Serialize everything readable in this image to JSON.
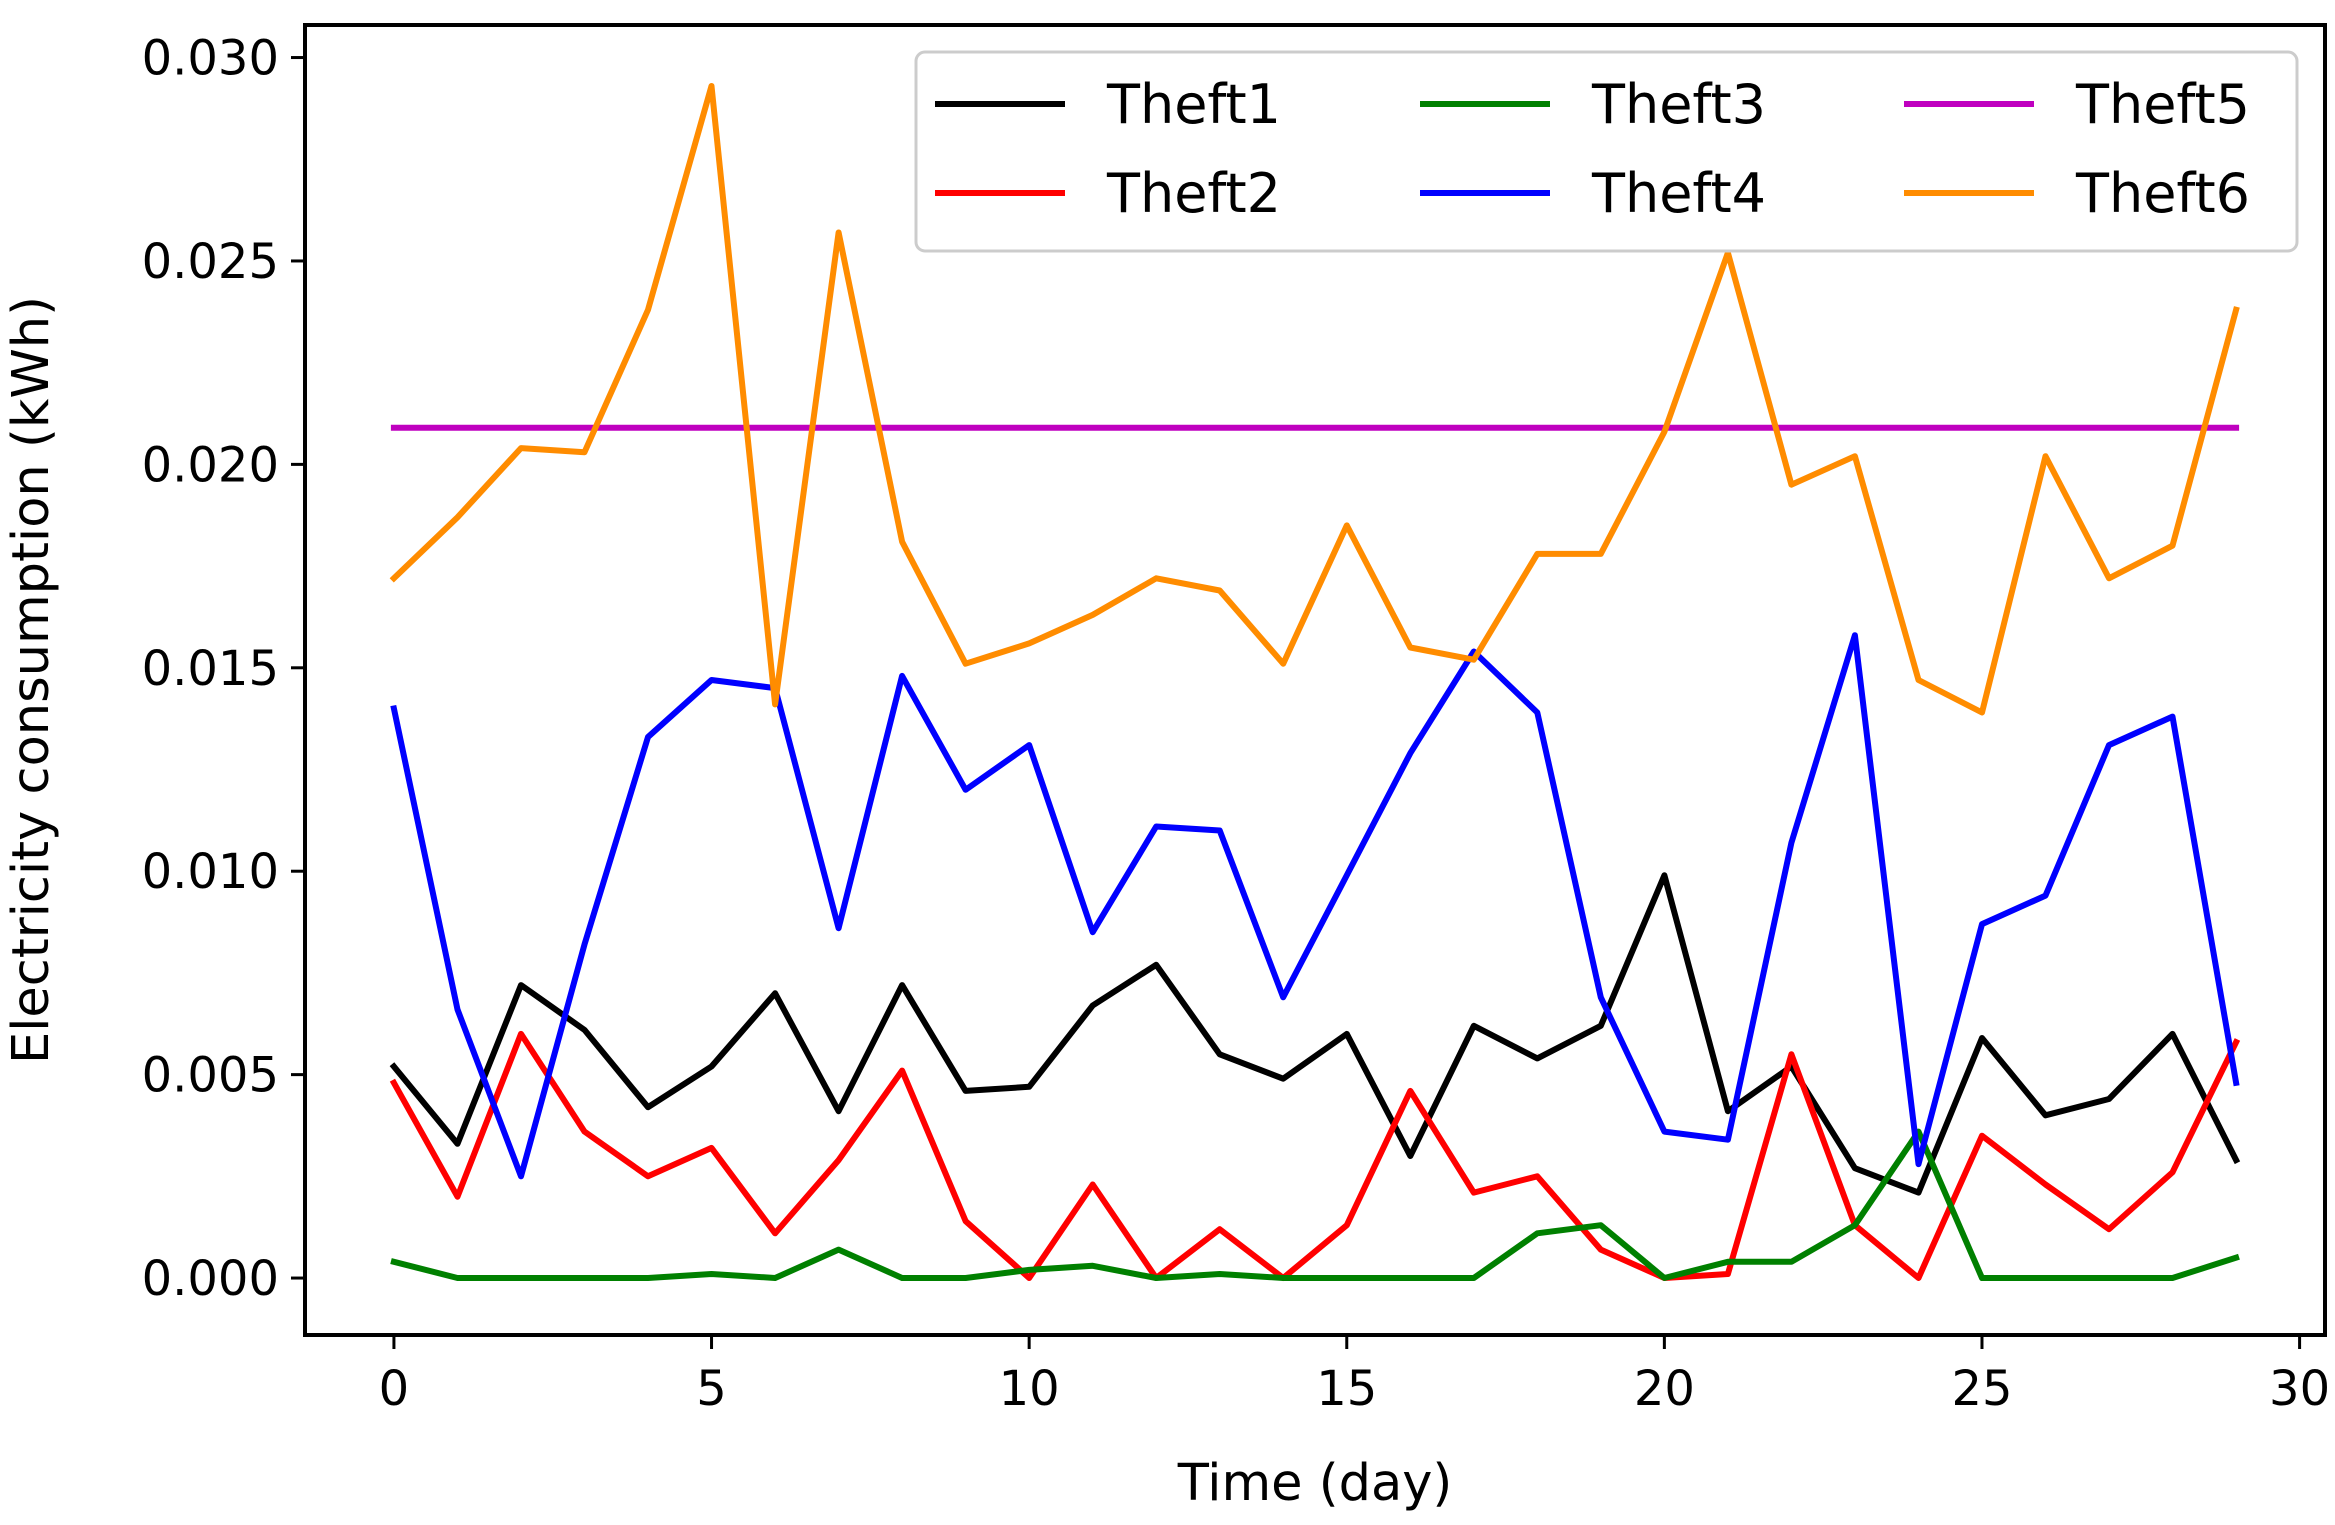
{
  "chart_data": {
    "type": "line",
    "title": "",
    "xlabel": "Time (day)",
    "ylabel": "Electricity consumption (kWh)",
    "xlim": [
      -1.4,
      30.4
    ],
    "ylim": [
      -0.0014,
      0.0308
    ],
    "xticks": [
      0,
      5,
      10,
      15,
      20,
      25,
      30
    ],
    "xtick_labels": [
      "0",
      "5",
      "10",
      "15",
      "20",
      "25",
      "30"
    ],
    "yticks": [
      0,
      0.005,
      0.01,
      0.015,
      0.02,
      0.025,
      0.03
    ],
    "ytick_labels": [
      "0.000",
      "0.005",
      "0.010",
      "0.015",
      "0.020",
      "0.025",
      "0.030"
    ],
    "legend_position": "top-right",
    "x": [
      0,
      1,
      2,
      3,
      4,
      5,
      6,
      7,
      8,
      9,
      10,
      11,
      12,
      13,
      14,
      15,
      16,
      17,
      18,
      19,
      20,
      21,
      22,
      23,
      24,
      25,
      26,
      27,
      28,
      29
    ],
    "series": [
      {
        "name": "Theft1",
        "color": "#000000",
        "values": [
          0.0052,
          0.0033,
          0.0072,
          0.0061,
          0.0042,
          0.0052,
          0.007,
          0.0041,
          0.0072,
          0.0046,
          0.0047,
          0.0067,
          0.0077,
          0.0055,
          0.0049,
          0.006,
          0.003,
          0.0062,
          0.0054,
          0.0062,
          0.0099,
          0.0041,
          0.0052,
          0.0027,
          0.0021,
          0.0059,
          0.004,
          0.0044,
          0.006,
          0.0029
        ]
      },
      {
        "name": "Theft2",
        "color": "#ff0000",
        "values": [
          0.0048,
          0.002,
          0.006,
          0.0036,
          0.0025,
          0.0032,
          0.0011,
          0.0029,
          0.0051,
          0.0014,
          0.0,
          0.0023,
          0.0,
          0.0012,
          0.0,
          0.0013,
          0.0046,
          0.0021,
          0.0025,
          0.0007,
          0.0,
          0.0001,
          0.0055,
          0.0013,
          0.0,
          0.0035,
          0.0023,
          0.0012,
          0.0026,
          0.0058
        ]
      },
      {
        "name": "Theft3",
        "color": "#008000",
        "values": [
          0.0004,
          0.0,
          0.0,
          0.0,
          0.0,
          0.0001,
          0.0,
          0.0007,
          0.0,
          0.0,
          0.0002,
          0.0003,
          0.0,
          0.0001,
          0.0,
          0.0,
          0.0,
          0.0,
          0.0011,
          0.0013,
          0.0,
          0.0004,
          0.0004,
          0.0013,
          0.0036,
          0.0,
          0.0,
          0.0,
          0.0,
          0.0005
        ]
      },
      {
        "name": "Theft4",
        "color": "#0000ff",
        "values": [
          0.014,
          0.0066,
          0.0025,
          0.0082,
          0.0133,
          0.0147,
          0.0145,
          0.0086,
          0.0148,
          0.012,
          0.0131,
          0.0085,
          0.0111,
          0.011,
          0.0069,
          0.0099,
          0.0129,
          0.0154,
          0.0139,
          0.0069,
          0.0036,
          0.0034,
          0.0107,
          0.0158,
          0.0028,
          0.0087,
          0.0094,
          0.0131,
          0.0138,
          0.0048
        ]
      },
      {
        "name": "Theft5",
        "color": "#bf00bf",
        "values": [
          0.0209,
          0.0209,
          0.0209,
          0.0209,
          0.0209,
          0.0209,
          0.0209,
          0.0209,
          0.0209,
          0.0209,
          0.0209,
          0.0209,
          0.0209,
          0.0209,
          0.0209,
          0.0209,
          0.0209,
          0.0209,
          0.0209,
          0.0209,
          0.0209,
          0.0209,
          0.0209,
          0.0209,
          0.0209,
          0.0209,
          0.0209,
          0.0209,
          0.0209,
          0.0209
        ]
      },
      {
        "name": "Theft6",
        "color": "#ff8c00",
        "values": [
          0.0172,
          0.0187,
          0.0204,
          0.0203,
          0.0238,
          0.0293,
          0.0141,
          0.0257,
          0.0181,
          0.0151,
          0.0156,
          0.0163,
          0.0172,
          0.0169,
          0.0151,
          0.0185,
          0.0155,
          0.0152,
          0.0178,
          0.0178,
          0.0208,
          0.0252,
          0.0195,
          0.0202,
          0.0147,
          0.0139,
          0.0202,
          0.0172,
          0.018,
          0.0238
        ]
      }
    ]
  }
}
